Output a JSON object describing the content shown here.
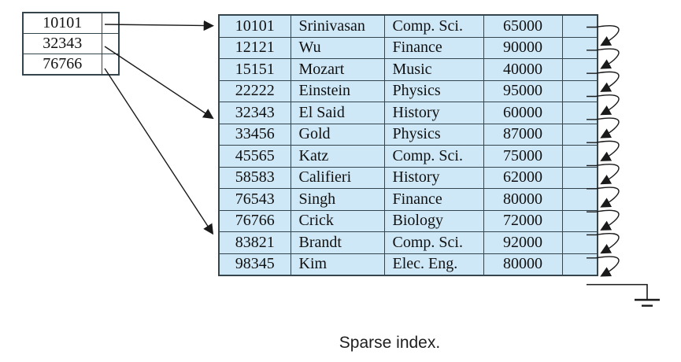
{
  "diagram": {
    "caption": "Sparse index.",
    "colors": {
      "row_fill": "#cfe8f7",
      "border": "#35454e",
      "arrow": "#1a1a1a",
      "index_fill": "#ffffff"
    },
    "index_table": {
      "entries": [
        "10101",
        "32343",
        "76766"
      ]
    },
    "file_table": {
      "rows": [
        {
          "id": "10101",
          "name": "Srinivasan",
          "dept": "Comp. Sci.",
          "salary": "65000"
        },
        {
          "id": "12121",
          "name": "Wu",
          "dept": "Finance",
          "salary": "90000"
        },
        {
          "id": "15151",
          "name": "Mozart",
          "dept": "Music",
          "salary": "40000"
        },
        {
          "id": "22222",
          "name": "Einstein",
          "dept": "Physics",
          "salary": "95000"
        },
        {
          "id": "32343",
          "name": "El Said",
          "dept": "History",
          "salary": "60000"
        },
        {
          "id": "33456",
          "name": "Gold",
          "dept": "Physics",
          "salary": "87000"
        },
        {
          "id": "45565",
          "name": "Katz",
          "dept": "Comp. Sci.",
          "salary": "75000"
        },
        {
          "id": "58583",
          "name": "Califieri",
          "dept": "History",
          "salary": "62000"
        },
        {
          "id": "76543",
          "name": "Singh",
          "dept": "Finance",
          "salary": "80000"
        },
        {
          "id": "76766",
          "name": "Crick",
          "dept": "Biology",
          "salary": "72000"
        },
        {
          "id": "83821",
          "name": "Brandt",
          "dept": "Comp. Sci.",
          "salary": "92000"
        },
        {
          "id": "98345",
          "name": "Kim",
          "dept": "Elec. Eng.",
          "salary": "80000"
        }
      ]
    }
  }
}
